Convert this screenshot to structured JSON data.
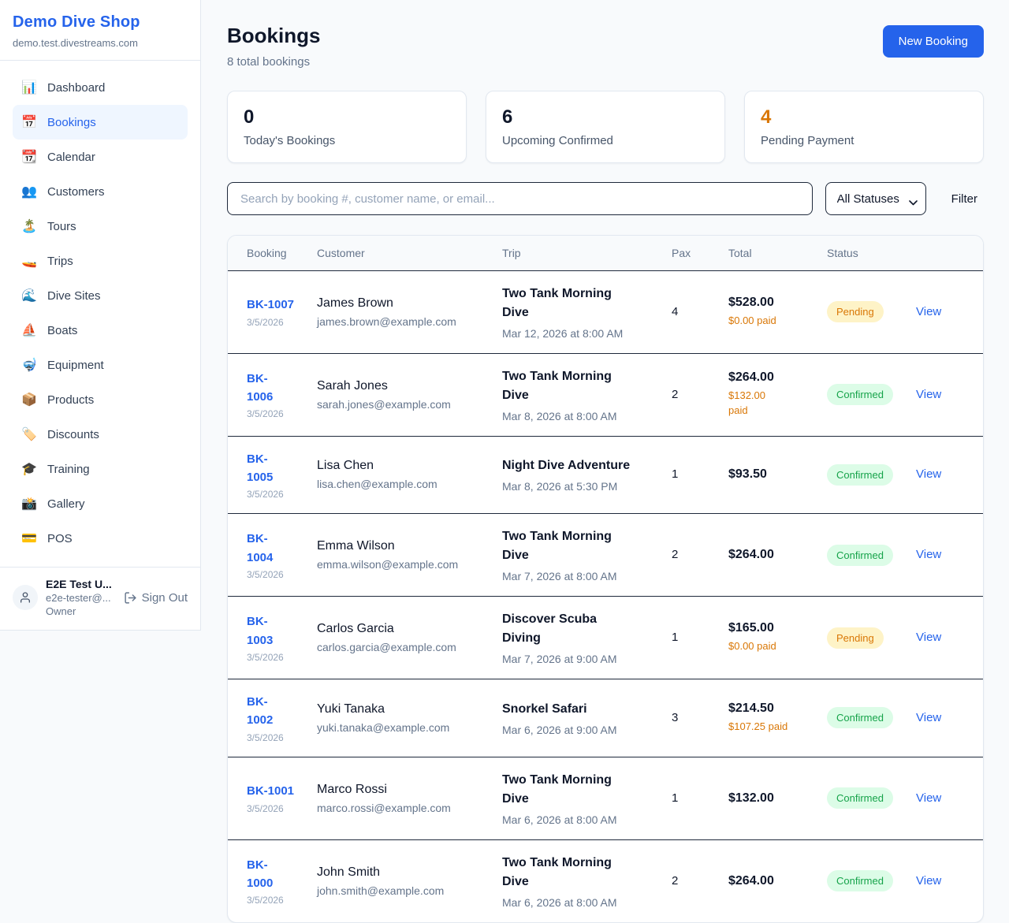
{
  "colors": {
    "accent": "#2563eb",
    "pending_text": "#d97706",
    "pending_bg": "#fef3c7",
    "confirmed_text": "#16a34a",
    "confirmed_bg": "#dcfce7",
    "paid_text": "#d97706"
  },
  "sidebar": {
    "shop_name": "Demo Dive Shop",
    "shop_domain": "demo.test.divestreams.com",
    "items": [
      {
        "icon": "📊",
        "label": "Dashboard",
        "active": false
      },
      {
        "icon": "📅",
        "label": "Bookings",
        "active": true
      },
      {
        "icon": "📆",
        "label": "Calendar",
        "active": false
      },
      {
        "icon": "👥",
        "label": "Customers",
        "active": false
      },
      {
        "icon": "🏝️",
        "label": "Tours",
        "active": false
      },
      {
        "icon": "🚤",
        "label": "Trips",
        "active": false
      },
      {
        "icon": "🌊",
        "label": "Dive Sites",
        "active": false
      },
      {
        "icon": "⛵",
        "label": "Boats",
        "active": false
      },
      {
        "icon": "🤿",
        "label": "Equipment",
        "active": false
      },
      {
        "icon": "📦",
        "label": "Products",
        "active": false
      },
      {
        "icon": "🏷️",
        "label": "Discounts",
        "active": false
      },
      {
        "icon": "🎓",
        "label": "Training",
        "active": false
      },
      {
        "icon": "📸",
        "label": "Gallery",
        "active": false
      },
      {
        "icon": "💳",
        "label": "POS",
        "active": false
      }
    ],
    "user": {
      "name": "E2E Test U...",
      "email": "e2e-tester@...",
      "role": "Owner",
      "sign_out_label": "Sign Out"
    }
  },
  "header": {
    "title": "Bookings",
    "subtitle": "8 total bookings",
    "new_booking_label": "New Booking"
  },
  "stats": [
    {
      "value": "0",
      "label": "Today's Bookings",
      "color": "#0f172a"
    },
    {
      "value": "6",
      "label": "Upcoming Confirmed",
      "color": "#0f172a"
    },
    {
      "value": "4",
      "label": "Pending Payment",
      "color": "#d97706"
    }
  ],
  "filters": {
    "search_placeholder": "Search by booking #, customer name, or email...",
    "status_selected": "All Statuses",
    "filter_label": "Filter"
  },
  "table": {
    "columns": [
      "Booking",
      "Customer",
      "Trip",
      "Pax",
      "Total",
      "Status"
    ],
    "view_label": "View",
    "rows": [
      {
        "booking_id": "BK-1007",
        "date": "3/5/2026",
        "customer": "James Brown",
        "email": "james.brown@example.com",
        "trip": "Two Tank Morning\nDive",
        "trip_time": "Mar 12, 2026 at 8:00 AM",
        "pax": "4",
        "total": "$528.00",
        "paid": "$0.00 paid",
        "status": "Pending"
      },
      {
        "booking_id": "BK-\n1006",
        "date": "3/5/2026",
        "customer": "Sarah Jones",
        "email": "sarah.jones@example.com",
        "trip": "Two Tank Morning\nDive",
        "trip_time": "Mar 8, 2026 at 8:00 AM",
        "pax": "2",
        "total": "$264.00",
        "paid": "$132.00\npaid",
        "status": "Confirmed"
      },
      {
        "booking_id": "BK-\n1005",
        "date": "3/5/2026",
        "customer": "Lisa Chen",
        "email": "lisa.chen@example.com",
        "trip": "Night Dive Adventure",
        "trip_time": "Mar 8, 2026 at 5:30 PM",
        "pax": "1",
        "total": "$93.50",
        "paid": "",
        "status": "Confirmed"
      },
      {
        "booking_id": "BK-\n1004",
        "date": "3/5/2026",
        "customer": "Emma Wilson",
        "email": "emma.wilson@example.com",
        "trip": "Two Tank Morning\nDive",
        "trip_time": "Mar 7, 2026 at 8:00 AM",
        "pax": "2",
        "total": "$264.00",
        "paid": "",
        "status": "Confirmed"
      },
      {
        "booking_id": "BK-\n1003",
        "date": "3/5/2026",
        "customer": "Carlos Garcia",
        "email": "carlos.garcia@example.com",
        "trip": "Discover Scuba\nDiving",
        "trip_time": "Mar 7, 2026 at 9:00 AM",
        "pax": "1",
        "total": "$165.00",
        "paid": "$0.00 paid",
        "status": "Pending"
      },
      {
        "booking_id": "BK-\n1002",
        "date": "3/5/2026",
        "customer": "Yuki Tanaka",
        "email": "yuki.tanaka@example.com",
        "trip": "Snorkel Safari",
        "trip_time": "Mar 6, 2026 at 9:00 AM",
        "pax": "3",
        "total": "$214.50",
        "paid": "$107.25 paid",
        "status": "Confirmed"
      },
      {
        "booking_id": "BK-1001",
        "date": "3/5/2026",
        "customer": "Marco Rossi",
        "email": "marco.rossi@example.com",
        "trip": "Two Tank Morning\nDive",
        "trip_time": "Mar 6, 2026 at 8:00 AM",
        "pax": "1",
        "total": "$132.00",
        "paid": "",
        "status": "Confirmed"
      },
      {
        "booking_id": "BK-\n1000",
        "date": "3/5/2026",
        "customer": "John Smith",
        "email": "john.smith@example.com",
        "trip": "Two Tank Morning\nDive",
        "trip_time": "Mar 6, 2026 at 8:00 AM",
        "pax": "2",
        "total": "$264.00",
        "paid": "",
        "status": "Confirmed"
      }
    ]
  }
}
